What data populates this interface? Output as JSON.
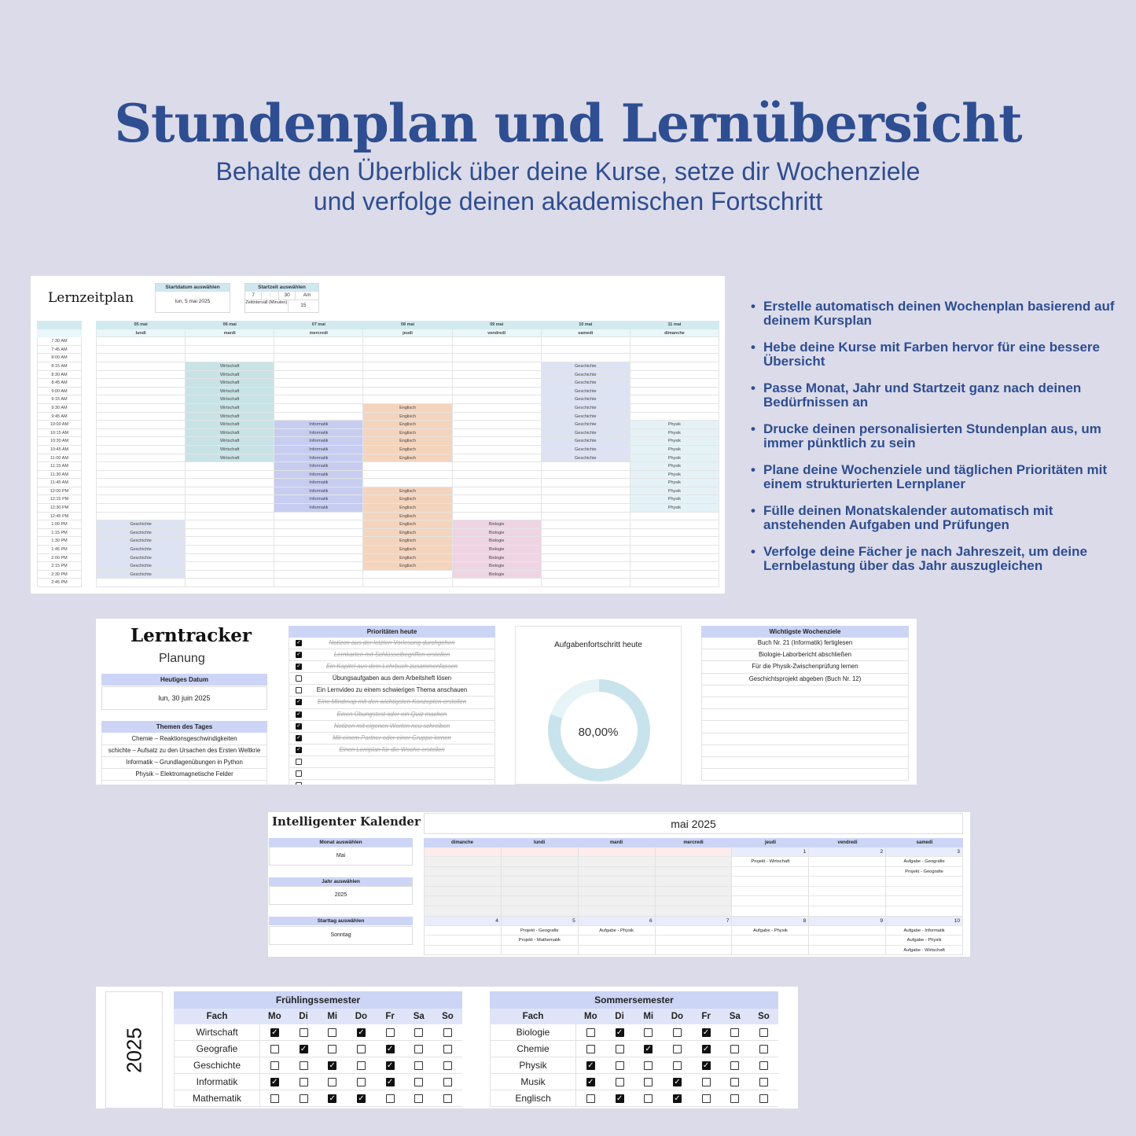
{
  "hero": {
    "title": "Stundenplan und Lernübersicht",
    "subtitle_line1": "Behalte den Überblick über deine Kurse, setze dir Wochenziele",
    "subtitle_line2": "und verfolge deinen akademischen Fortschritt"
  },
  "lernzeitplan": {
    "title": "Lernzeitplan",
    "start_date_label": "Startdatum auswählen",
    "start_date_value": "lun, 5 mai 2025",
    "start_time_label": "Startzeit auswählen",
    "start_hour": "7",
    "time_sep": ":",
    "start_minute": "30",
    "ampm": "Am",
    "interval_label": "Zeitintervall (Minuten)",
    "interval_value": "15",
    "dates": [
      "05 mai",
      "06 mai",
      "07 mai",
      "08 mai",
      "09 mai",
      "10 mai",
      "11 mai"
    ],
    "days": [
      "lundi",
      "mardi",
      "mercredi",
      "jeudi",
      "vendredi",
      "samedi",
      "dimanche"
    ],
    "times": [
      "7:30 AM",
      "7:45 AM",
      "8:00 AM",
      "8:15 AM",
      "8:30 AM",
      "8:45 AM",
      "9:00 AM",
      "9:15 AM",
      "9:30 AM",
      "9:45 AM",
      "10:00 AM",
      "10:15 AM",
      "10:30 AM",
      "10:45 AM",
      "11:00 AM",
      "11:15 AM",
      "11:30 AM",
      "11:45 AM",
      "12:00 PM",
      "12:15 PM",
      "12:30 PM",
      "12:45 PM",
      "1:00 PM",
      "1:15 PM",
      "1:30 PM",
      "1:45 PM",
      "2:00 PM",
      "2:15 PM",
      "2:30 PM",
      "2:45 PM"
    ],
    "blocks": [
      {
        "day": 1,
        "start": 3,
        "end": 14,
        "subject": "Wirtschaft",
        "color": "#c8e3e6"
      },
      {
        "day": 5,
        "start": 3,
        "end": 14,
        "subject": "Geschichte",
        "color": "#dde3f3"
      },
      {
        "day": 3,
        "start": 8,
        "end": 14,
        "subject": "Englisch",
        "color": "#f5d4bd"
      },
      {
        "day": 2,
        "start": 10,
        "end": 20,
        "subject": "Informatik",
        "color": "#c6cdf1"
      },
      {
        "day": 6,
        "start": 10,
        "end": 20,
        "subject": "Physik",
        "color": "#e4f2f7"
      },
      {
        "day": 3,
        "start": 18,
        "end": 27,
        "subject": "Englisch",
        "color": "#f5d4bd"
      },
      {
        "day": 0,
        "start": 22,
        "end": 28,
        "subject": "Geschichte",
        "color": "#dde3f3"
      },
      {
        "day": 4,
        "start": 22,
        "end": 28,
        "subject": "Biologie",
        "color": "#efd5e3"
      }
    ]
  },
  "features": [
    "Erstelle automatisch deinen Wochenplan basierend auf deinem Kursplan",
    "Hebe deine Kurse mit Farben hervor für eine bessere Übersicht",
    "Passe Monat, Jahr und Startzeit ganz nach deinen Bedürfnissen an",
    "Drucke deinen personalisierten Stundenplan aus, um immer pünktlich zu sein",
    "Plane deine Wochenziele und täglichen Prioritäten mit einem strukturierten Lernplaner",
    "Fülle deinen Monatskalender automatisch mit anstehenden Aufgaben und Prüfungen",
    "Verfolge deine Fächer je nach Jahreszeit, um deine Lernbelastung über das Jahr auszugleichen"
  ],
  "lerntracker": {
    "title": "Lerntracker",
    "subtitle": "Planung",
    "date_label": "Heutiges Datum",
    "date_value": "lun, 30 juin 2025",
    "topics_label": "Themen des Tages",
    "topics": [
      "Chemie – Reaktionsgeschwindigkeiten",
      "schichte – Aufsatz zu den Ursachen des Ersten Weltkrie",
      "Informatik – Grundlagenübungen in Python",
      "Physik – Elektromagnetische Felder",
      ""
    ],
    "priorities_label": "Prioritäten heute",
    "priorities": [
      {
        "text": "Notizen aus der letzten Vorlesung durchgehen",
        "done": true
      },
      {
        "text": "Lernkarten mit Schlüsselbegriffen erstellen",
        "done": true
      },
      {
        "text": "Ein Kapitel aus dem Lehrbuch zusammenfassen",
        "done": true
      },
      {
        "text": "Übungsaufgaben aus dem Arbeitsheft lösen",
        "done": false
      },
      {
        "text": "Ein Lernvideo zu einem schwierigen Thema anschauen",
        "done": false
      },
      {
        "text": "Eine Mindmap mit den wichtigsten Konzepten erstellen",
        "done": true
      },
      {
        "text": "Einen Übungstest oder ein Quiz machen",
        "done": true
      },
      {
        "text": "Notizen mit eigenen Worten neu schreiben",
        "done": true
      },
      {
        "text": "Mit einem Partner oder einer Gruppe lernen",
        "done": true
      },
      {
        "text": "Einen Lernplan für die Woche erstellen",
        "done": true
      },
      {
        "text": "",
        "done": false
      },
      {
        "text": "",
        "done": false
      },
      {
        "text": "",
        "done": false
      }
    ],
    "progress_label": "Aufgabenfortschritt heute",
    "progress_text": "80,00%",
    "progress_value": 0.8,
    "goals_label": "Wichtigste Wochenziele",
    "goals": [
      "Buch Nr. 21 (Informatik) fertiglesen",
      "Biologie-Laborbericht abschließen",
      "Für die Physik-Zwischenprüfung lernen",
      "Geschichtsprojekt abgeben (Buch Nr. 12)",
      "",
      "",
      "",
      "",
      "",
      "",
      "",
      ""
    ]
  },
  "kalender": {
    "title": "Intelligenter Kalender",
    "month_title": "mai 2025",
    "month_label": "Monat auswählen",
    "month_value": "Mai",
    "year_label": "Jahr auswählen",
    "year_value": "2025",
    "startday_label": "Starttag auswählen",
    "startday_value": "Sonntag",
    "weekdays": [
      "dimanche",
      "lundi",
      "mardi",
      "mercredi",
      "jeudi",
      "vendredi",
      "samedi"
    ],
    "weeks": [
      {
        "slots": 6,
        "days": [
          {
            "num": "",
            "events": []
          },
          {
            "num": "",
            "events": []
          },
          {
            "num": "",
            "events": []
          },
          {
            "num": "",
            "events": []
          },
          {
            "num": "1",
            "events": [
              "Projekt - Wirtschaft"
            ]
          },
          {
            "num": "2",
            "events": []
          },
          {
            "num": "3",
            "events": [
              "Aufgabe - Geografie",
              "Projekt - Geografie"
            ]
          }
        ]
      },
      {
        "slots": 3,
        "days": [
          {
            "num": "4",
            "events": []
          },
          {
            "num": "5",
            "events": [
              "Projekt - Geografie",
              "Projekt - Mathematik"
            ]
          },
          {
            "num": "6",
            "events": [
              "Aufgabe - Physik"
            ]
          },
          {
            "num": "7",
            "events": []
          },
          {
            "num": "8",
            "events": [
              "Aufgabe - Physik"
            ]
          },
          {
            "num": "9",
            "events": []
          },
          {
            "num": "10",
            "events": [
              "Aufgabe - Informatik",
              "Aufgabe - Physik",
              "Aufgabe - Wirtschaft"
            ]
          }
        ]
      }
    ]
  },
  "semester": {
    "year": "2025",
    "fach_label": "Fach",
    "days": [
      "Mo",
      "Di",
      "Mi",
      "Do",
      "Fr",
      "Sa",
      "So"
    ],
    "tables": [
      {
        "title": "Frühlingssemester",
        "rows": [
          {
            "subject": "Wirtschaft",
            "checks": [
              true,
              false,
              false,
              true,
              false,
              false,
              false
            ]
          },
          {
            "subject": "Geografie",
            "checks": [
              false,
              true,
              false,
              false,
              true,
              false,
              false
            ]
          },
          {
            "subject": "Geschichte",
            "checks": [
              false,
              false,
              true,
              false,
              true,
              false,
              false
            ]
          },
          {
            "subject": "Informatik",
            "checks": [
              true,
              false,
              false,
              false,
              true,
              false,
              false
            ]
          },
          {
            "subject": "Mathematik",
            "checks": [
              false,
              false,
              true,
              true,
              false,
              false,
              false
            ]
          }
        ]
      },
      {
        "title": "Sommersemester",
        "rows": [
          {
            "subject": "Biologie",
            "checks": [
              false,
              true,
              false,
              false,
              true,
              false,
              false
            ]
          },
          {
            "subject": "Chemie",
            "checks": [
              false,
              false,
              true,
              false,
              true,
              false,
              false
            ]
          },
          {
            "subject": "Physik",
            "checks": [
              true,
              false,
              false,
              false,
              true,
              false,
              false
            ]
          },
          {
            "subject": "Musik",
            "checks": [
              true,
              false,
              false,
              true,
              false,
              false,
              false
            ]
          },
          {
            "subject": "Englisch",
            "checks": [
              false,
              true,
              false,
              true,
              false,
              false,
              false
            ]
          }
        ]
      }
    ]
  }
}
